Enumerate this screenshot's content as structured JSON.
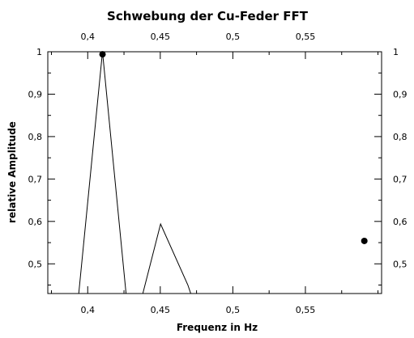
{
  "chart_data": {
    "type": "line",
    "title": "Schwebung der Cu-Feder FFT",
    "xlabel": "Frequenz in Hz",
    "ylabel": "relative Amplitude",
    "xlim": [
      0.3725,
      0.6025
    ],
    "ylim": [
      0.43,
      1.0
    ],
    "x_ticks": [
      0.4,
      0.45,
      0.5,
      0.55
    ],
    "x_tick_labels": [
      "0,4",
      "0,45",
      "0,5",
      "0,55"
    ],
    "y_ticks": [
      0.5,
      0.6,
      0.7,
      0.8,
      0.9,
      1.0
    ],
    "y_tick_labels": [
      "0,5",
      "0,6",
      "0,7",
      "0,8",
      "0,9",
      "1"
    ],
    "grid": false,
    "series": [
      {
        "values_xy": [
          [
            0.3938,
            0.43
          ],
          [
            0.4102,
            1.0
          ],
          [
            0.4264,
            0.43
          ],
          [
            0.4332,
            0.41
          ],
          [
            0.438,
            0.43
          ],
          [
            0.4502,
            0.594
          ],
          [
            0.469,
            0.45
          ],
          [
            0.472,
            0.42
          ]
        ],
        "color": "#000000"
      }
    ],
    "points": [
      {
        "x": 0.4102,
        "y": 0.994
      },
      {
        "x": 0.5906,
        "y": 0.554
      }
    ]
  }
}
